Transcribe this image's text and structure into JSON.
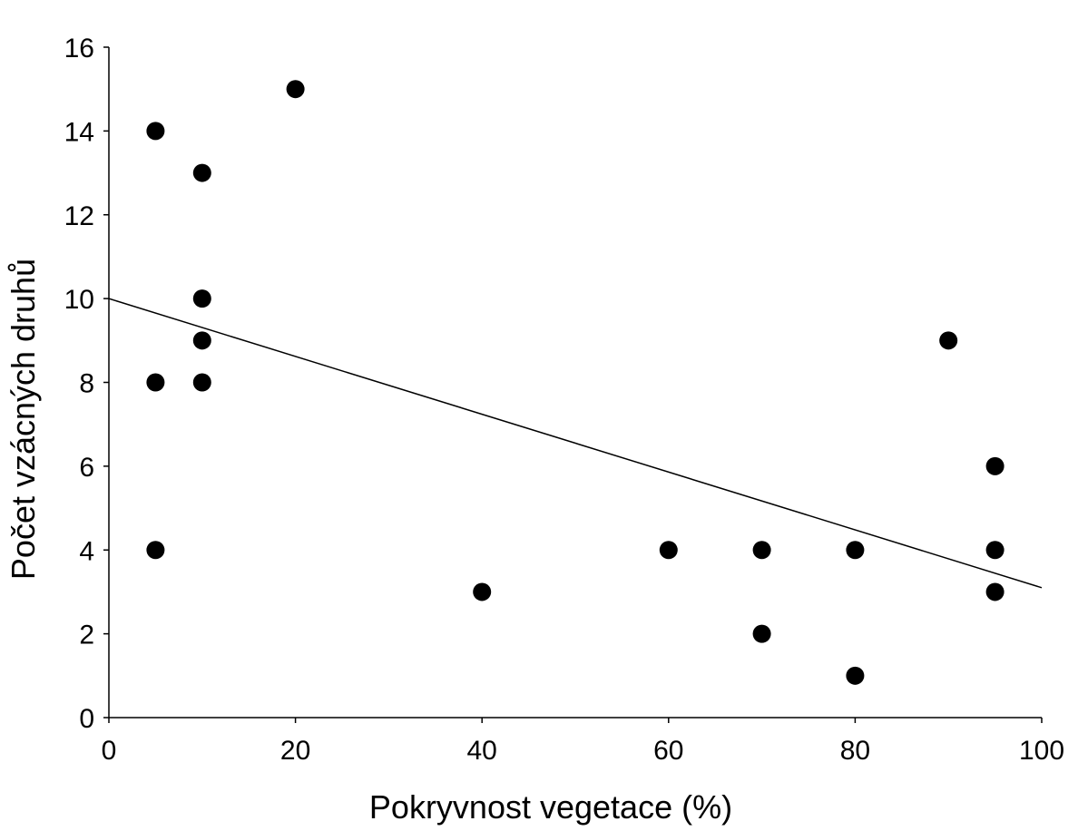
{
  "chart_data": {
    "type": "scatter",
    "title": "",
    "xlabel": "Pokryvnost vegetace (%)",
    "ylabel": "Počet vzácných druhů",
    "xlim": [
      0,
      100
    ],
    "ylim": [
      0,
      16
    ],
    "x_ticks": [
      0,
      20,
      40,
      60,
      80,
      100
    ],
    "y_ticks": [
      0,
      2,
      4,
      6,
      8,
      10,
      12,
      14,
      16
    ],
    "grid": false,
    "legend": "none",
    "marker_color": "#000000",
    "series": [
      {
        "points": [
          {
            "x": 5,
            "y": 14
          },
          {
            "x": 5,
            "y": 8
          },
          {
            "x": 5,
            "y": 4
          },
          {
            "x": 10,
            "y": 13
          },
          {
            "x": 10,
            "y": 10
          },
          {
            "x": 10,
            "y": 9
          },
          {
            "x": 10,
            "y": 8
          },
          {
            "x": 20,
            "y": 15
          },
          {
            "x": 40,
            "y": 3
          },
          {
            "x": 60,
            "y": 4
          },
          {
            "x": 70,
            "y": 4
          },
          {
            "x": 70,
            "y": 2
          },
          {
            "x": 80,
            "y": 4
          },
          {
            "x": 80,
            "y": 1
          },
          {
            "x": 90,
            "y": 9
          },
          {
            "x": 95,
            "y": 6
          },
          {
            "x": 95,
            "y": 4
          },
          {
            "x": 95,
            "y": 3
          }
        ]
      }
    ],
    "trendline": {
      "x": [
        0,
        100
      ],
      "y": [
        10,
        3.1
      ]
    }
  }
}
